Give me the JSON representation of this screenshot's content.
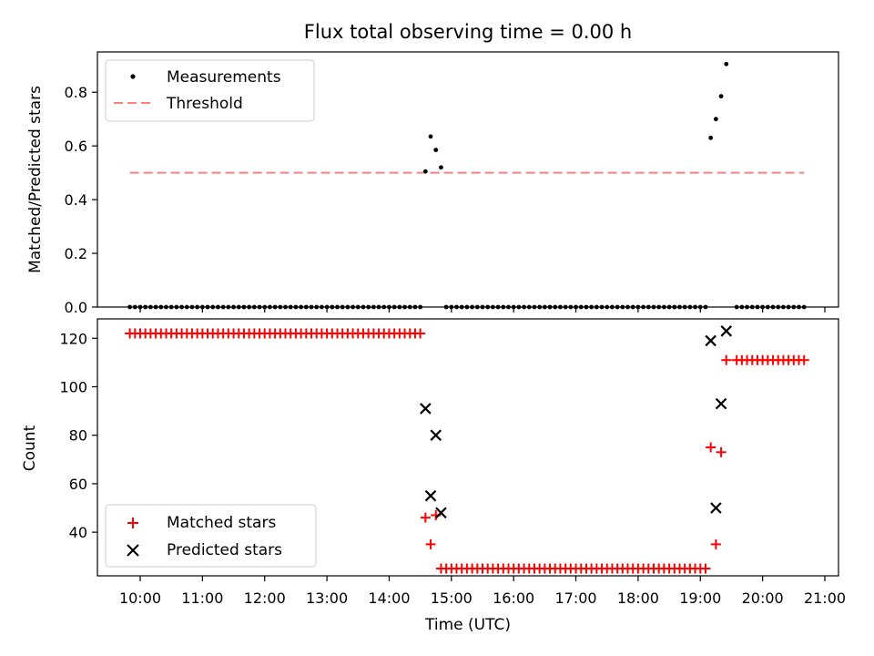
{
  "chart_data": {
    "title": "Flux total observing time = 0.00 h",
    "xlabel": "Time (UTC)",
    "x_ticks": [
      "10:00",
      "11:00",
      "12:00",
      "13:00",
      "14:00",
      "15:00",
      "16:00",
      "17:00",
      "18:00",
      "19:00",
      "20:00",
      "21:00"
    ],
    "panels": [
      {
        "type": "scatter",
        "ylabel": "Matched/Predicted stars",
        "ylim": [
          0,
          0.95
        ],
        "y_ticks": [
          "0.0",
          "0.2",
          "0.4",
          "0.6",
          "0.8"
        ],
        "legend": {
          "placement": "top-left",
          "entries": [
            "Measurements",
            "Threshold"
          ]
        },
        "series": [
          {
            "name": "Measurements",
            "marker": "dot",
            "color": "#000000",
            "segments": [
              {
                "x_start": "09:50",
                "x_end": "14:30",
                "step_minutes": 5,
                "y": 0
              },
              {
                "x_start": "14:55",
                "x_end": "19:05",
                "step_minutes": 5,
                "y": 0
              },
              {
                "x_start": "19:35",
                "x_end": "20:40",
                "step_minutes": 5,
                "y": 0
              }
            ],
            "points": [
              {
                "x": "14:35",
                "y": 0.505
              },
              {
                "x": "14:40",
                "y": 0.635
              },
              {
                "x": "14:45",
                "y": 0.585
              },
              {
                "x": "14:50",
                "y": 0.52
              },
              {
                "x": "19:10",
                "y": 0.63
              },
              {
                "x": "19:15",
                "y": 0.7
              },
              {
                "x": "19:20",
                "y": 0.785
              },
              {
                "x": "19:25",
                "y": 0.905
              }
            ]
          },
          {
            "name": "Threshold",
            "style": "dashed",
            "color": "#ff7f7f",
            "x": [
              "09:50",
              "20:40"
            ],
            "y": [
              0.5,
              0.5
            ]
          }
        ]
      },
      {
        "type": "scatter",
        "ylabel": "Count",
        "ylim": [
          22,
          128
        ],
        "y_ticks": [
          "40",
          "60",
          "80",
          "100",
          "120"
        ],
        "legend": {
          "placement": "bottom-left",
          "entries": [
            "Matched stars",
            "Predicted stars"
          ]
        },
        "series": [
          {
            "name": "Matched stars",
            "marker": "plus",
            "color": "#ff0000",
            "segments": [
              {
                "x_start": "09:50",
                "x_end": "14:30",
                "step_minutes": 5,
                "y": 122
              },
              {
                "x_start": "14:55",
                "x_end": "19:05",
                "step_minutes": 5,
                "y": 25
              },
              {
                "x_start": "19:35",
                "x_end": "20:40",
                "step_minutes": 5,
                "y": 111
              }
            ],
            "points": [
              {
                "x": "14:35",
                "y": 46
              },
              {
                "x": "14:40",
                "y": 35
              },
              {
                "x": "14:45",
                "y": 47
              },
              {
                "x": "14:50",
                "y": 25
              },
              {
                "x": "19:10",
                "y": 75
              },
              {
                "x": "19:15",
                "y": 35
              },
              {
                "x": "19:20",
                "y": 73
              },
              {
                "x": "19:25",
                "y": 111
              }
            ]
          },
          {
            "name": "Predicted stars",
            "marker": "x",
            "color": "#000000",
            "points": [
              {
                "x": "14:35",
                "y": 91
              },
              {
                "x": "14:40",
                "y": 55
              },
              {
                "x": "14:45",
                "y": 80
              },
              {
                "x": "14:50",
                "y": 48
              },
              {
                "x": "19:10",
                "y": 119
              },
              {
                "x": "19:15",
                "y": 50
              },
              {
                "x": "19:20",
                "y": 93
              },
              {
                "x": "19:25",
                "y": 123
              }
            ]
          }
        ]
      }
    ]
  }
}
